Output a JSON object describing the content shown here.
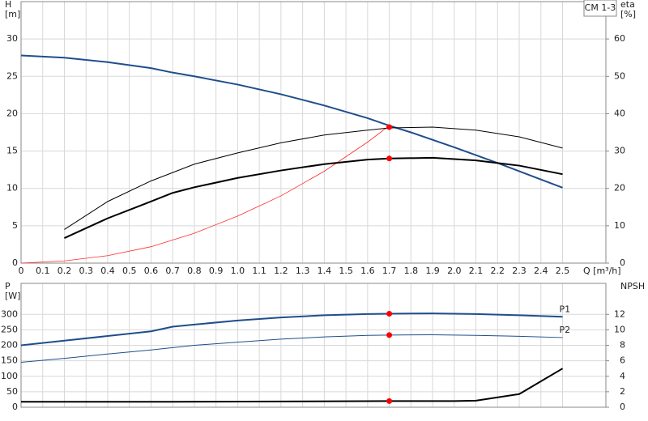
{
  "chart_data": [
    {
      "type": "line",
      "title": "CM 1-3",
      "ylabel": [
        "H",
        "[m]"
      ],
      "y2label": [
        "eta",
        "[%]"
      ],
      "xlabel": "Q [m³/h]",
      "xlim": [
        0,
        2.7
      ],
      "ylim": [
        0,
        35
      ],
      "y2lim": [
        0,
        70
      ],
      "grid": true,
      "xticks": [
        0,
        0.1,
        0.2,
        0.3,
        0.4,
        0.5,
        0.6,
        0.7,
        0.8,
        0.9,
        {
          "value": 1,
          "label": "1.0"
        },
        1.1,
        1.2,
        1.3,
        1.4,
        1.5,
        1.6,
        1.7,
        1.8,
        1.9,
        {
          "value": 2,
          "label": "2.0"
        },
        2.1,
        2.2,
        2.3,
        2.4,
        2.5
      ],
      "yticks": [
        0,
        5,
        10,
        15,
        20,
        25,
        30
      ],
      "y2ticks": [
        0,
        10,
        20,
        30,
        40,
        50,
        60
      ],
      "series": [
        {
          "mode": "line",
          "color": "#1f4e8c",
          "width": 2,
          "x": [
            0,
            0.2,
            0.4,
            0.6,
            0.7,
            0.8,
            1.0,
            1.2,
            1.4,
            1.6,
            1.7,
            1.8,
            2.0,
            2.2,
            2.4,
            2.5
          ],
          "values": [
            27.8,
            27.5,
            26.9,
            26.1,
            25.5,
            25,
            23.9,
            22.6,
            21.1,
            19.4,
            18.4,
            17.5,
            15.5,
            13.4,
            11.2,
            10.1
          ]
        },
        {
          "mode": "line",
          "color": "#ff2a2a",
          "width": 0.8,
          "x": [
            0,
            0.2,
            0.4,
            0.6,
            0.8,
            1.0,
            1.2,
            1.4,
            1.6,
            1.7
          ],
          "values": [
            0,
            0.3,
            1,
            2.2,
            4,
            6.3,
            9,
            12.3,
            16.2,
            18.4
          ]
        },
        {
          "mode": "line",
          "axis": "y2",
          "color": "#000000",
          "width": 1,
          "x": [
            0.2,
            0.4,
            0.6,
            0.8,
            1.0,
            1.2,
            1.4,
            1.6,
            1.7,
            1.9,
            2.1,
            2.3,
            2.5
          ],
          "values": [
            9,
            16.5,
            22,
            26.5,
            29.5,
            32.2,
            34.3,
            35.6,
            36.2,
            36.4,
            35.6,
            33.8,
            30.8
          ]
        },
        {
          "mode": "line",
          "axis": "y2",
          "color": "#000000",
          "width": 2,
          "x": [
            0.2,
            0.4,
            0.6,
            0.7,
            0.8,
            1.0,
            1.2,
            1.4,
            1.6,
            1.7,
            1.9,
            2.1,
            2.3,
            2.5
          ],
          "values": [
            6.7,
            12,
            16.5,
            18.8,
            20.3,
            22.8,
            24.8,
            26.5,
            27.7,
            28,
            28.2,
            27.5,
            26.1,
            23.8
          ]
        },
        {
          "mode": "markers",
          "color": "#ff0000",
          "width": 1,
          "x": [
            1.7
          ],
          "values": [
            18.2
          ]
        },
        {
          "mode": "markers",
          "axis": "y2",
          "color": "#ff0000",
          "width": 1,
          "x": [
            1.7
          ],
          "values": [
            28
          ]
        }
      ]
    },
    {
      "type": "line",
      "ylabel": [
        "P",
        "[W]"
      ],
      "y2label": [
        "NPSH"
      ],
      "xlim": [
        0,
        2.7
      ],
      "ylim": [
        0,
        400
      ],
      "y2lim": [
        0,
        16
      ],
      "grid": true,
      "xtick_labels": false,
      "xticks": [
        0,
        0.1,
        0.2,
        0.3,
        0.4,
        0.5,
        0.6,
        0.7,
        0.8,
        0.9,
        1,
        1.1,
        1.2,
        1.3,
        1.4,
        1.5,
        1.6,
        1.7,
        1.8,
        1.9,
        2,
        2.1,
        2.2,
        2.3,
        2.4,
        2.5
      ],
      "yticks": [
        0,
        50,
        100,
        150,
        200,
        250,
        300
      ],
      "y2ticks": [
        0,
        2,
        4,
        6,
        8,
        10,
        12
      ],
      "series": [
        {
          "name": "P1",
          "mode": "line",
          "color": "#1f4e8c",
          "width": 2,
          "x": [
            0,
            0.2,
            0.4,
            0.6,
            0.7,
            0.8,
            1.0,
            1.2,
            1.4,
            1.6,
            1.7,
            1.9,
            2.1,
            2.3,
            2.5
          ],
          "values": [
            200,
            215,
            230,
            245,
            260,
            267,
            280,
            290,
            297,
            301,
            302,
            303,
            301,
            297,
            292
          ]
        },
        {
          "name": "P2",
          "mode": "line",
          "color": "#1f4e8c",
          "width": 1,
          "x": [
            0,
            0.2,
            0.4,
            0.6,
            0.8,
            1.0,
            1.2,
            1.4,
            1.6,
            1.7,
            1.9,
            2.1,
            2.3,
            2.5
          ],
          "values": [
            145,
            158,
            172,
            185,
            200,
            210,
            220,
            227,
            232,
            233,
            234,
            232,
            229,
            225
          ]
        },
        {
          "mode": "line",
          "axis": "y2",
          "color": "#000000",
          "width": 2,
          "x": [
            0,
            0.7,
            1.2,
            1.7,
            2.0,
            2.1,
            2.3,
            2.5
          ],
          "values": [
            0.7,
            0.7,
            0.75,
            0.8,
            0.8,
            0.85,
            1.7,
            5
          ]
        },
        {
          "mode": "markers",
          "color": "#ff0000",
          "width": 1,
          "x": [
            1.7,
            1.7
          ],
          "values": [
            302,
            233
          ]
        },
        {
          "mode": "markers",
          "axis": "y2",
          "color": "#ff0000",
          "width": 1,
          "x": [
            1.7
          ],
          "values": [
            0.8
          ]
        }
      ]
    }
  ]
}
